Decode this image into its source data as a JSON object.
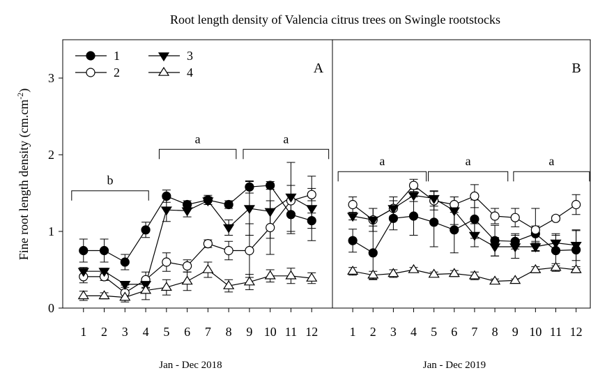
{
  "title": "Root length density of Valencia citrus trees on Swingle rootstocks",
  "y_label": {
    "text": "Fine root length density (cm.cm",
    "superscript": "-2",
    "suffix": ")"
  },
  "chart_data": [
    {
      "type": "line",
      "panel_label": "A",
      "x_label": "Jan - Dec 2018",
      "x": [
        1,
        2,
        3,
        4,
        5,
        6,
        7,
        8,
        9,
        10,
        11,
        12
      ],
      "xticks": [
        1,
        2,
        3,
        4,
        5,
        6,
        7,
        8,
        9,
        10,
        11,
        12
      ],
      "xlim": [
        0,
        13
      ],
      "ylim": [
        0,
        3.5
      ],
      "yticks": [
        0,
        1,
        2,
        3
      ],
      "legend": "upper left",
      "series": [
        {
          "name": "1",
          "marker": "circle",
          "filled": true,
          "values": [
            0.75,
            0.75,
            0.6,
            1.02,
            1.46,
            1.35,
            1.41,
            1.35,
            1.58,
            1.6,
            1.22,
            1.14
          ],
          "errors": [
            0.15,
            0.15,
            0.1,
            0.1,
            0.08,
            0.05,
            0.06,
            0.05,
            0.08,
            0.05,
            0.25,
            0.1
          ]
        },
        {
          "name": "2",
          "marker": "circle",
          "filled": false,
          "values": [
            0.41,
            0.41,
            0.2,
            0.37,
            0.6,
            0.55,
            0.84,
            0.75,
            0.75,
            1.05,
            1.4,
            1.48
          ],
          "errors": [
            0.08,
            0.05,
            0.1,
            0.1,
            0.12,
            0.08,
            0.05,
            0.12,
            0.35,
            0.35,
            0.2,
            0.08
          ]
        },
        {
          "name": "3",
          "marker": "triangle-down",
          "filled": true,
          "values": [
            0.48,
            0.48,
            0.31,
            0.31,
            1.28,
            1.27,
            1.4,
            1.05,
            1.3,
            1.26,
            1.45,
            1.3
          ],
          "errors": [
            0.05,
            0.04,
            0.04,
            0.05,
            0.15,
            0.08,
            0.05,
            0.1,
            0.35,
            0.35,
            0.45,
            0.42
          ]
        },
        {
          "name": "4",
          "marker": "triangle-up",
          "filled": false,
          "values": [
            0.16,
            0.16,
            0.14,
            0.23,
            0.27,
            0.35,
            0.5,
            0.29,
            0.34,
            0.42,
            0.42,
            0.39
          ],
          "errors": [
            0.06,
            0.04,
            0.06,
            0.12,
            0.1,
            0.12,
            0.1,
            0.08,
            0.1,
            0.08,
            0.1,
            0.07
          ]
        }
      ],
      "annotations": [
        {
          "text": "b",
          "x1": 0.43,
          "x2": 4.14,
          "y": 1.53
        },
        {
          "text": "a",
          "x1": 4.65,
          "x2": 8.36,
          "y": 2.07
        },
        {
          "text": "a",
          "x1": 8.7,
          "x2": 12.82,
          "y": 2.07
        }
      ]
    },
    {
      "type": "line",
      "panel_label": "B",
      "x_label": "Jan - Dec 2019",
      "x": [
        1,
        2,
        3,
        4,
        5,
        6,
        7,
        8,
        9,
        10,
        11,
        12
      ],
      "xticks": [
        1,
        2,
        3,
        4,
        5,
        6,
        7,
        8,
        9,
        10,
        11,
        12
      ],
      "xlim": [
        0,
        12.7
      ],
      "ylim": [
        0,
        3.5
      ],
      "series": [
        {
          "marker": "circle",
          "filled": true,
          "values": [
            0.88,
            0.72,
            1.17,
            1.2,
            1.12,
            1.02,
            1.16,
            0.88,
            0.87,
            0.97,
            0.75,
            0.76
          ],
          "errors": [
            0.15,
            0.35,
            0.15,
            0.25,
            0.32,
            0.3,
            0.25,
            0.2,
            0.1,
            0.1,
            0.2,
            0.25
          ]
        },
        {
          "marker": "circle",
          "filled": false,
          "values": [
            1.35,
            1.15,
            1.3,
            1.6,
            1.4,
            1.35,
            1.46,
            1.2,
            1.18,
            1.02,
            1.17,
            1.35
          ],
          "errors": [
            0.1,
            0.15,
            0.1,
            0.08,
            0.12,
            0.1,
            0.15,
            0.1,
            0.12,
            0.28,
            0.03,
            0.13
          ]
        },
        {
          "marker": "triangle-down",
          "filled": true,
          "values": [
            1.2,
            1.15,
            1.3,
            1.47,
            1.43,
            1.27,
            0.95,
            0.8,
            0.8,
            0.8,
            0.85,
            0.82
          ],
          "errors": [
            0.05,
            0.15,
            0.15,
            0.08,
            0.1,
            0.18,
            0.15,
            0.12,
            0.15,
            0.05,
            0.12,
            0.2
          ]
        },
        {
          "marker": "triangle-up",
          "filled": false,
          "values": [
            0.48,
            0.43,
            0.45,
            0.5,
            0.44,
            0.45,
            0.42,
            0.35,
            0.36,
            0.5,
            0.53,
            0.5
          ],
          "errors": [
            0.05,
            0.05,
            0.05,
            0.03,
            0.03,
            0.04,
            0.05,
            0.03,
            0.02,
            0.04,
            0.05,
            0.04
          ]
        }
      ],
      "annotations": [
        {
          "text": "a",
          "x1": 0.28,
          "x2": 4.62,
          "y": 1.78
        },
        {
          "text": "a",
          "x1": 4.72,
          "x2": 8.64,
          "y": 1.78
        },
        {
          "text": "a",
          "x1": 8.92,
          "x2": 12.66,
          "y": 1.78
        }
      ]
    }
  ]
}
